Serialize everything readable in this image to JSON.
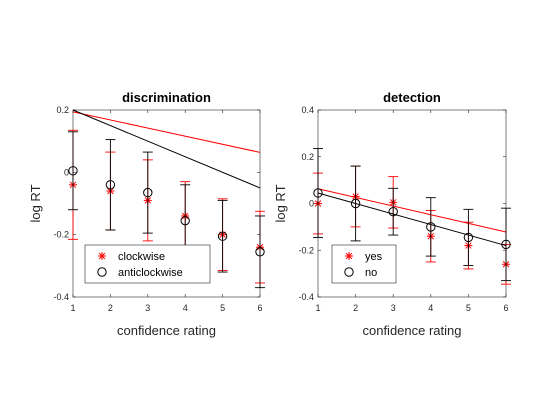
{
  "chart_data": [
    {
      "type": "line",
      "title": "discrimination",
      "xlabel": "confidence rating",
      "ylabel": "log RT",
      "xlim": [
        1,
        6
      ],
      "ylim": [
        -0.4,
        0.2
      ],
      "xticks": [
        "1",
        "2",
        "3",
        "4",
        "5",
        "6"
      ],
      "yticks": [
        {
          "value": -0.4,
          "label": "-0.4"
        },
        {
          "value": -0.2,
          "label": "-0.2"
        },
        {
          "value": 0,
          "label": "0"
        },
        {
          "value": 0.2,
          "label": "0.2"
        }
      ],
      "x": [
        1,
        2,
        3,
        4,
        5,
        6
      ],
      "legend_position": "bottom-center",
      "series": [
        {
          "name": "clockwise",
          "marker": "asterisk",
          "color": "#ff0000",
          "values": [
            -0.04,
            -0.06,
            -0.09,
            -0.14,
            -0.2,
            -0.24
          ],
          "errors": [
            0.175,
            0.125,
            0.13,
            0.11,
            0.115,
            0.115
          ],
          "fit": [
            -0.026,
            0.22
          ]
        },
        {
          "name": "anticlockwise",
          "marker": "circle",
          "color": "#000000",
          "values": [
            0.005,
            -0.04,
            -0.065,
            -0.155,
            -0.205,
            -0.255
          ],
          "errors": [
            0.125,
            0.145,
            0.13,
            0.115,
            0.115,
            0.115
          ],
          "fit": [
            -0.05,
            0.25
          ]
        }
      ]
    },
    {
      "type": "line",
      "title": "detection",
      "xlabel": "confidence rating",
      "ylabel": "log RT",
      "xlim": [
        1,
        6
      ],
      "ylim": [
        -0.4,
        0.4
      ],
      "xticks": [
        "1",
        "2",
        "3",
        "4",
        "5",
        "6"
      ],
      "yticks": [
        {
          "value": -0.4,
          "label": "-0.4"
        },
        {
          "value": -0.2,
          "label": "-0.2"
        },
        {
          "value": 0,
          "label": "0"
        },
        {
          "value": 0.2,
          "label": "0.2"
        },
        {
          "value": 0.4,
          "label": "0.4"
        }
      ],
      "x": [
        1,
        2,
        3,
        4,
        5,
        6
      ],
      "legend_position": "bottom-left",
      "series": [
        {
          "name": "yes",
          "marker": "asterisk",
          "color": "#ff0000",
          "values": [
            0.0,
            0.03,
            0.005,
            -0.14,
            -0.18,
            -0.26
          ],
          "errors": [
            0.13,
            0.13,
            0.11,
            0.11,
            0.1,
            0.085
          ],
          "fit": [
            -0.037,
            0.1
          ]
        },
        {
          "name": "no",
          "marker": "circle",
          "color": "#000000",
          "values": [
            0.045,
            0.0,
            -0.035,
            -0.1,
            -0.145,
            -0.175
          ],
          "errors": [
            0.19,
            0.16,
            0.1,
            0.125,
            0.12,
            0.155
          ],
          "fit": [
            -0.045,
            0.09
          ]
        }
      ]
    }
  ]
}
